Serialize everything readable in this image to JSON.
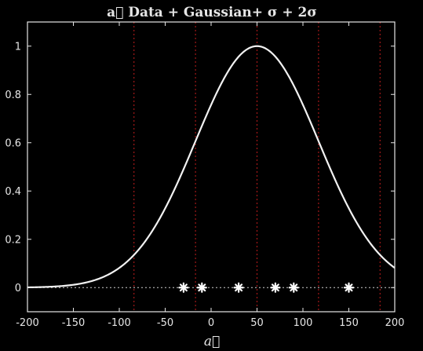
{
  "chart_data": {
    "type": "line",
    "title": "a⃗ Data + Gaussian+ σ + 2σ",
    "xlabel": "a⃗",
    "ylabel": "",
    "xlim": [
      -200,
      200
    ],
    "ylim": [
      -0.1,
      1.1
    ],
    "x_ticks": [
      -200,
      -150,
      -100,
      -50,
      0,
      50,
      100,
      150,
      200
    ],
    "y_ticks": [
      0,
      0.2,
      0.4,
      0.6,
      0.8,
      1
    ],
    "grid": false,
    "legend": "none",
    "gaussian": {
      "mean": 50,
      "sigma": 67,
      "peak": 1
    },
    "data_points": {
      "x": [
        -30,
        -10,
        30,
        70,
        90,
        150
      ],
      "y": [
        0,
        0,
        0,
        0,
        0,
        0
      ]
    },
    "vertical_lines": [
      -84,
      -17,
      50,
      117,
      184
    ],
    "baseline_y": 0,
    "colors": {
      "background": "#000000",
      "axes": "#e6e6e6",
      "curve": "#f2f2f2",
      "markers": "#ffffff",
      "vertical_lines": "#b01a1a",
      "baseline": "#cfcfcf"
    }
  }
}
